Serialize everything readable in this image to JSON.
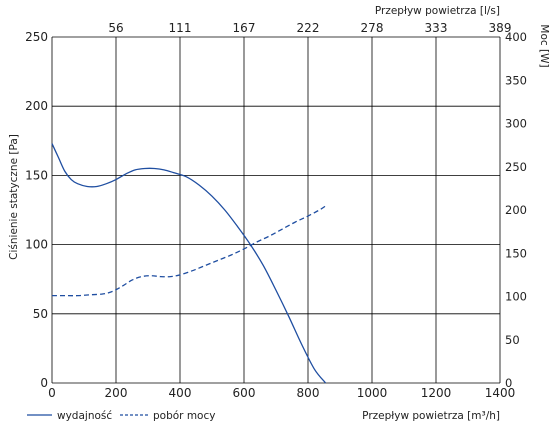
{
  "chart_data": {
    "type": "line",
    "x": {
      "label": "Przepływ powietrza [m³/h]",
      "range": [
        0,
        1400
      ],
      "ticks": [
        0,
        200,
        400,
        600,
        800,
        1000,
        1200,
        1400
      ],
      "tick_labels": [
        "0",
        "200",
        "400",
        "600",
        "800",
        "1000",
        "1200",
        "1400"
      ],
      "grid": true
    },
    "x_top": {
      "label": "Przepływ powietrza [l/s]",
      "tick_labels": [
        "56",
        "111",
        "167",
        "222",
        "278",
        "333",
        "389"
      ]
    },
    "y_left": {
      "label": "Ciśnienie statyczne [Pa]",
      "range": [
        0,
        250
      ],
      "ticks": [
        0,
        50,
        100,
        150,
        200,
        250
      ],
      "tick_labels": [
        "0",
        "50",
        "100",
        "150",
        "200",
        "250"
      ],
      "grid": true
    },
    "y_right": {
      "label": "Moc [W]",
      "range": [
        0,
        400
      ],
      "ticks": [
        0,
        50,
        100,
        150,
        200,
        250,
        300,
        350,
        400
      ],
      "tick_labels": [
        "0",
        "50",
        "100",
        "150",
        "200",
        "250",
        "300",
        "350",
        "400"
      ]
    },
    "legend_position": "bottom-left",
    "series": [
      {
        "name": "wydajność",
        "axis": "left",
        "style": "solid",
        "color": "#1f4ea1",
        "points": [
          [
            0,
            173
          ],
          [
            20,
            163
          ],
          [
            40,
            153
          ],
          [
            60,
            147
          ],
          [
            80,
            144
          ],
          [
            110,
            142
          ],
          [
            140,
            142
          ],
          [
            170,
            144
          ],
          [
            200,
            147
          ],
          [
            230,
            151
          ],
          [
            260,
            154
          ],
          [
            290,
            155
          ],
          [
            320,
            155
          ],
          [
            350,
            154
          ],
          [
            380,
            152
          ],
          [
            420,
            149
          ],
          [
            460,
            143
          ],
          [
            500,
            135
          ],
          [
            540,
            125
          ],
          [
            580,
            113
          ],
          [
            620,
            100
          ],
          [
            660,
            85
          ],
          [
            700,
            67
          ],
          [
            740,
            48
          ],
          [
            780,
            28
          ],
          [
            820,
            10
          ],
          [
            855,
            0
          ]
        ]
      },
      {
        "name": "pobór mocy",
        "axis": "right",
        "style": "dashed",
        "color": "#1f4ea1",
        "points": [
          [
            0,
            101
          ],
          [
            40,
            101
          ],
          [
            80,
            101
          ],
          [
            120,
            102
          ],
          [
            160,
            103
          ],
          [
            190,
            106
          ],
          [
            220,
            112
          ],
          [
            250,
            119
          ],
          [
            280,
            123
          ],
          [
            310,
            124
          ],
          [
            340,
            123
          ],
          [
            370,
            123
          ],
          [
            400,
            125
          ],
          [
            440,
            130
          ],
          [
            480,
            136
          ],
          [
            520,
            142
          ],
          [
            560,
            148
          ],
          [
            600,
            155
          ],
          [
            640,
            163
          ],
          [
            680,
            170
          ],
          [
            720,
            178
          ],
          [
            760,
            186
          ],
          [
            800,
            193
          ],
          [
            840,
            201
          ],
          [
            860,
            206
          ]
        ]
      }
    ]
  }
}
